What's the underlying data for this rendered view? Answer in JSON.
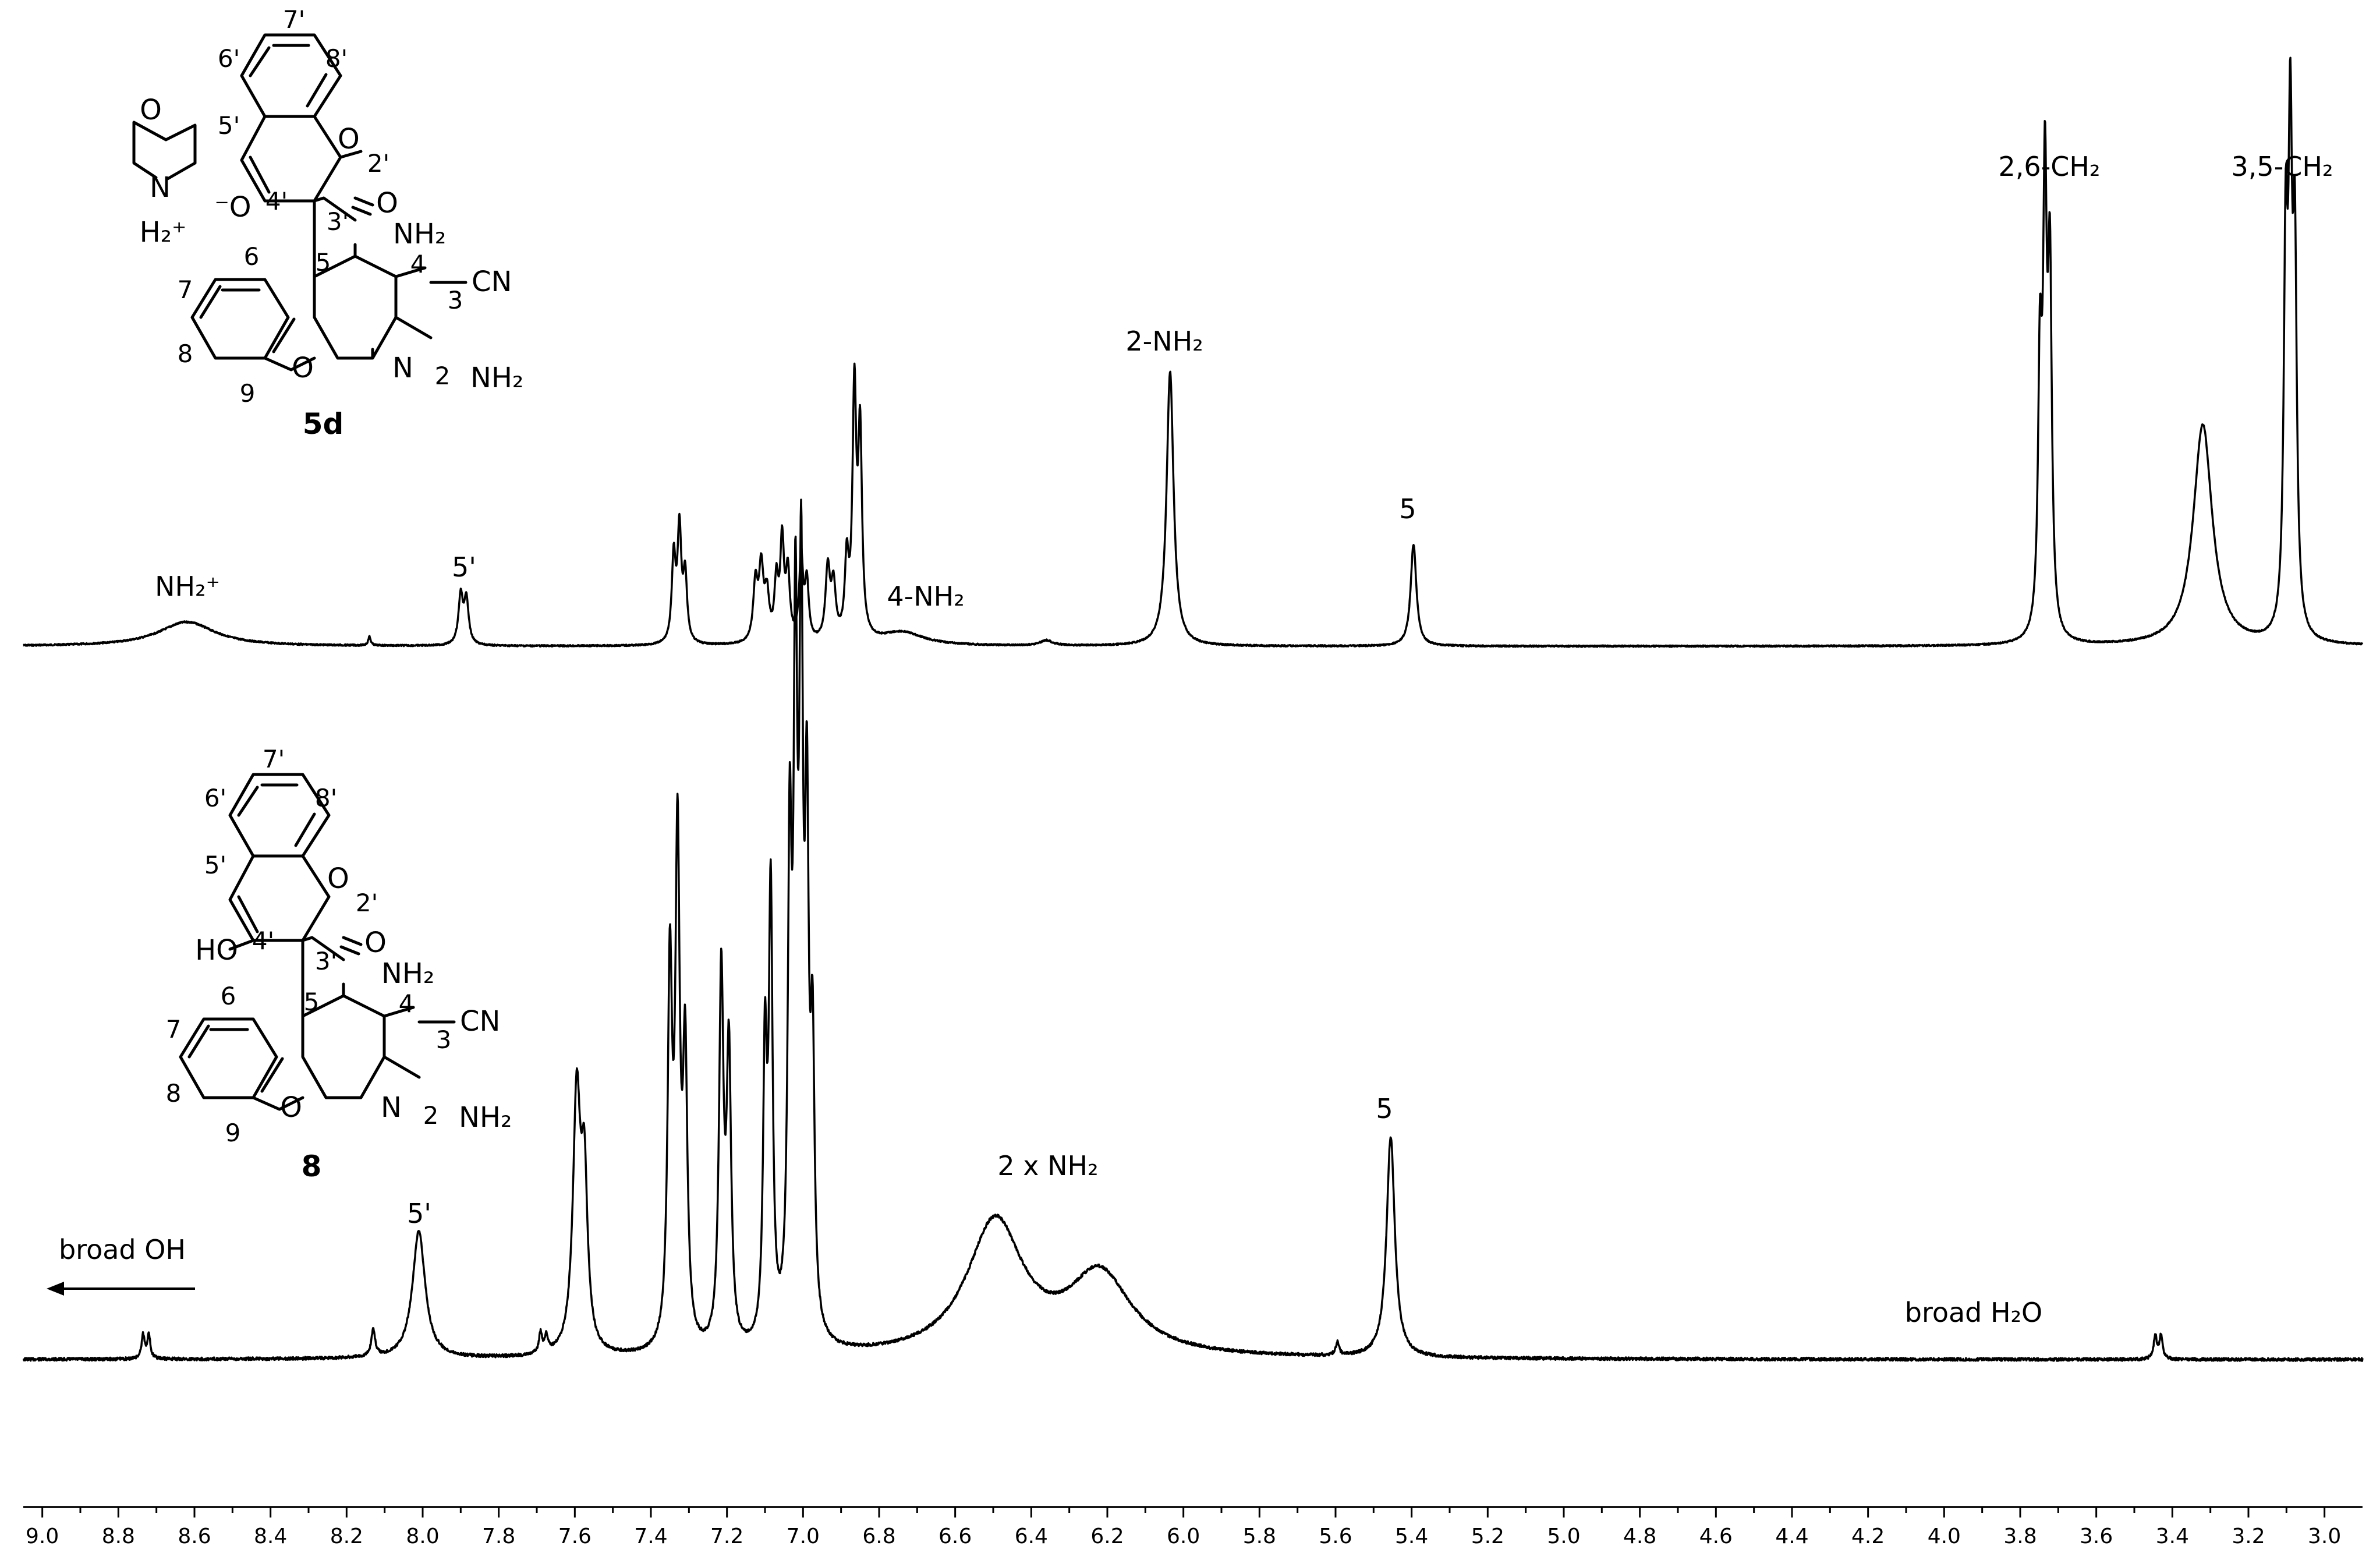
{
  "chart_data": {
    "type": "line",
    "xlabel": "",
    "ylabel": "",
    "x_range": [
      9.05,
      2.9
    ],
    "x_reversed": true,
    "ticks": [
      "9.0",
      "8.8",
      "8.6",
      "8.4",
      "8.2",
      "8.0",
      "7.8",
      "7.6",
      "7.4",
      "7.2",
      "7.0",
      "6.8",
      "6.6",
      "6.4",
      "6.2",
      "6.0",
      "5.8",
      "5.6",
      "5.4",
      "5.2",
      "5.0",
      "4.8",
      "4.6",
      "4.4",
      "4.2",
      "4.0",
      "3.8",
      "3.6",
      "3.4",
      "3.2",
      "3.0"
    ],
    "tick_values": [
      9.0,
      8.8,
      8.6,
      8.4,
      8.2,
      8.0,
      7.8,
      7.6,
      7.4,
      7.2,
      7.0,
      6.8,
      6.6,
      6.4,
      6.2,
      6.0,
      5.8,
      5.6,
      5.4,
      5.2,
      5.0,
      4.8,
      4.6,
      4.4,
      4.2,
      4.0,
      3.8,
      3.6,
      3.4,
      3.2,
      3.0
    ],
    "series": [
      {
        "compound": "5d",
        "peaks": [
          {
            "ppm": 8.62,
            "height": 0.055,
            "width": 0.09
          },
          {
            "ppm": 8.14,
            "height": 0.02,
            "width": 0.004
          },
          {
            "ppm": 7.9,
            "height": 0.11,
            "width": 0.007
          },
          {
            "ppm": 7.885,
            "height": 0.1,
            "width": 0.007
          },
          {
            "ppm": 7.34,
            "height": 0.19,
            "width": 0.006
          },
          {
            "ppm": 7.325,
            "height": 0.25,
            "width": 0.006
          },
          {
            "ppm": 7.31,
            "height": 0.15,
            "width": 0.006
          },
          {
            "ppm": 7.125,
            "height": 0.13,
            "width": 0.007
          },
          {
            "ppm": 7.11,
            "height": 0.16,
            "width": 0.007
          },
          {
            "ppm": 7.095,
            "height": 0.1,
            "width": 0.007
          },
          {
            "ppm": 7.07,
            "height": 0.13,
            "width": 0.006
          },
          {
            "ppm": 7.055,
            "height": 0.22,
            "width": 0.006
          },
          {
            "ppm": 7.04,
            "height": 0.15,
            "width": 0.006
          },
          {
            "ppm": 7.005,
            "height": 0.19,
            "width": 0.006
          },
          {
            "ppm": 6.99,
            "height": 0.13,
            "width": 0.006
          },
          {
            "ppm": 6.935,
            "height": 0.16,
            "width": 0.007
          },
          {
            "ppm": 6.92,
            "height": 0.12,
            "width": 0.007
          },
          {
            "ppm": 6.885,
            "height": 0.17,
            "width": 0.006
          },
          {
            "ppm": 6.865,
            "height": 0.55,
            "width": 0.006
          },
          {
            "ppm": 6.85,
            "height": 0.45,
            "width": 0.006
          },
          {
            "ppm": 6.74,
            "height": 0.03,
            "width": 0.07
          },
          {
            "ppm": 6.36,
            "height": 0.012,
            "width": 0.02
          },
          {
            "ppm": 6.035,
            "height": 0.62,
            "width": 0.011
          },
          {
            "ppm": 5.395,
            "height": 0.23,
            "width": 0.009
          },
          {
            "ppm": 3.748,
            "height": 0.58,
            "width": 0.006
          },
          {
            "ppm": 3.735,
            "height": 0.95,
            "width": 0.006
          },
          {
            "ppm": 3.722,
            "height": 0.78,
            "width": 0.006
          },
          {
            "ppm": 3.32,
            "height": 0.5,
            "width": 0.03
          },
          {
            "ppm": 3.102,
            "height": 0.82,
            "width": 0.006
          },
          {
            "ppm": 3.09,
            "height": 1.0,
            "width": 0.006
          },
          {
            "ppm": 3.078,
            "height": 0.8,
            "width": 0.006
          }
        ]
      },
      {
        "compound": "8",
        "peaks": [
          {
            "ppm": 8.735,
            "height": 0.035,
            "width": 0.005
          },
          {
            "ppm": 8.72,
            "height": 0.035,
            "width": 0.005
          },
          {
            "ppm": 8.13,
            "height": 0.04,
            "width": 0.006
          },
          {
            "ppm": 8.01,
            "height": 0.19,
            "width": 0.02
          },
          {
            "ppm": 7.69,
            "height": 0.03,
            "width": 0.005
          },
          {
            "ppm": 7.675,
            "height": 0.025,
            "width": 0.005
          },
          {
            "ppm": 7.595,
            "height": 0.38,
            "width": 0.012
          },
          {
            "ppm": 7.575,
            "height": 0.24,
            "width": 0.01
          },
          {
            "ppm": 7.35,
            "height": 0.55,
            "width": 0.007
          },
          {
            "ppm": 7.33,
            "height": 0.73,
            "width": 0.007
          },
          {
            "ppm": 7.31,
            "height": 0.42,
            "width": 0.007
          },
          {
            "ppm": 7.215,
            "height": 0.55,
            "width": 0.007
          },
          {
            "ppm": 7.195,
            "height": 0.43,
            "width": 0.007
          },
          {
            "ppm": 7.1,
            "height": 0.42,
            "width": 0.006
          },
          {
            "ppm": 7.085,
            "height": 0.65,
            "width": 0.006
          },
          {
            "ppm": 7.035,
            "height": 0.68,
            "width": 0.006
          },
          {
            "ppm": 7.02,
            "height": 0.95,
            "width": 0.006
          },
          {
            "ppm": 7.005,
            "height": 1.0,
            "width": 0.006
          },
          {
            "ppm": 6.99,
            "height": 0.7,
            "width": 0.006
          },
          {
            "ppm": 6.975,
            "height": 0.4,
            "width": 0.006
          },
          {
            "ppm": 6.495,
            "height": 0.2,
            "width": 0.09
          },
          {
            "ppm": 6.22,
            "height": 0.12,
            "width": 0.1
          },
          {
            "ppm": 5.595,
            "height": 0.02,
            "width": 0.005
          },
          {
            "ppm": 5.455,
            "height": 0.33,
            "width": 0.013
          },
          {
            "ppm": 3.445,
            "height": 0.035,
            "width": 0.005
          },
          {
            "ppm": 3.43,
            "height": 0.035,
            "width": 0.005
          }
        ]
      }
    ],
    "annotations": {
      "top": {
        "nh2_plus": "NH₂⁺",
        "h5p": "5'",
        "nh2_4": "4-NH₂",
        "nh2_2": "2-NH₂",
        "h5": "5",
        "ch2_26": "2,6-CH₂",
        "ch2_35": "3,5-CH₂"
      },
      "bottom": {
        "broad_oh": "broad OH",
        "h5p": "5'",
        "nh2_x2": "2 x NH₂",
        "h5": "5",
        "broad_h2o": "broad H₂O"
      }
    }
  },
  "structures": {
    "top": {
      "compound": "5d",
      "morpholinium": {
        "o": "O",
        "n": "N",
        "h2plus": "H₂⁺"
      },
      "o_minus": "⁻O",
      "ring_o": "O",
      "carbonyl_o": "O",
      "pyran_o": "O",
      "pyridine_n": "N",
      "nh2_4": "NH₂",
      "nh2_2": "NH₂",
      "cn": "CN",
      "numbers": {
        "n7p": "7'",
        "n6p": "6'",
        "n8p": "8'",
        "n5p": "5'",
        "n2p": "2'",
        "n4p": "4'",
        "n3p": "3'",
        "n6": "6",
        "n7": "7",
        "n8": "8",
        "n9": "9",
        "n5": "5",
        "n4": "4",
        "n3": "3",
        "n2": "2"
      }
    },
    "bottom": {
      "compound": "8",
      "ho": "HO",
      "ring_o": "O",
      "carbonyl_o": "O",
      "pyran_o": "O",
      "pyridine_n": "N",
      "nh2_4": "NH₂",
      "nh2_2": "NH₂",
      "cn": "CN",
      "numbers": {
        "n7p": "7'",
        "n6p": "6'",
        "n8p": "8'",
        "n5p": "5'",
        "n2p": "2'",
        "n4p": "4'",
        "n3p": "3'",
        "n6": "6",
        "n7": "7",
        "n8": "8",
        "n9": "9",
        "n5": "5",
        "n4": "4",
        "n3": "3",
        "n2": "2"
      }
    }
  }
}
